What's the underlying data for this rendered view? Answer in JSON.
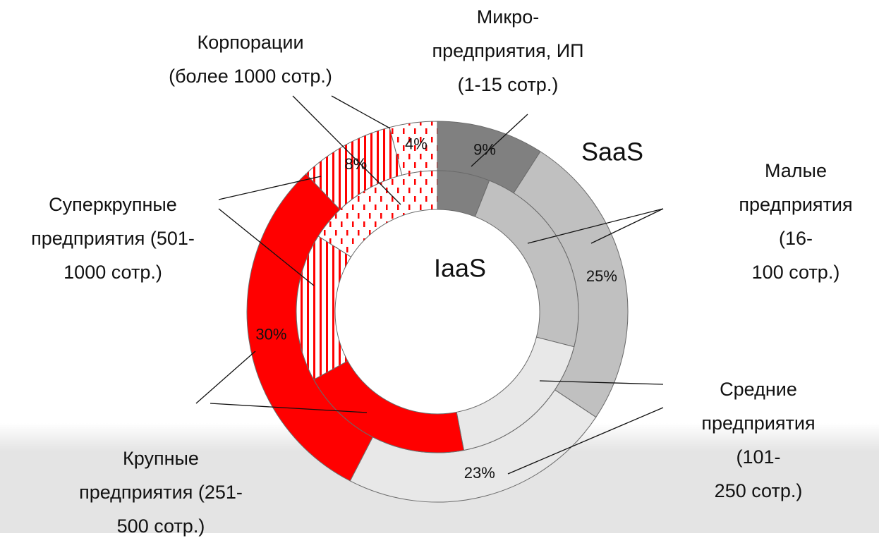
{
  "chart_data": {
    "type": "donut",
    "categories": [
      "Микро-\nпредприятия, ИП\n(1-15 сотр.)",
      "Малые\nпредприятия (16-\n100 сотр.)",
      "Средние\nпредприятия (101-\n250 сотр.)",
      "Крупные\nпредприятия (251-\n500 сотр.)",
      "Суперкрупные\nпредприятия (501-\n1000 сотр.)",
      "Корпорации\n(более 1000 сотр.)"
    ],
    "colors": [
      "#808080",
      "#c0c0c0",
      "#e8e8e8",
      "#ff0000",
      "#ff0000",
      "#ff0000"
    ],
    "patterns": [
      null,
      null,
      null,
      null,
      "vertical-stripes",
      "dashes"
    ],
    "series": [
      {
        "name": "SaaS",
        "values": [
          9,
          25,
          23,
          30,
          8,
          4
        ],
        "value_labels": [
          "9%",
          "25%",
          "23%",
          "30%",
          "8%",
          "4%"
        ]
      },
      {
        "name": "IaaS",
        "values": [
          6,
          23,
          18,
          20,
          17,
          16
        ]
      }
    ]
  }
}
